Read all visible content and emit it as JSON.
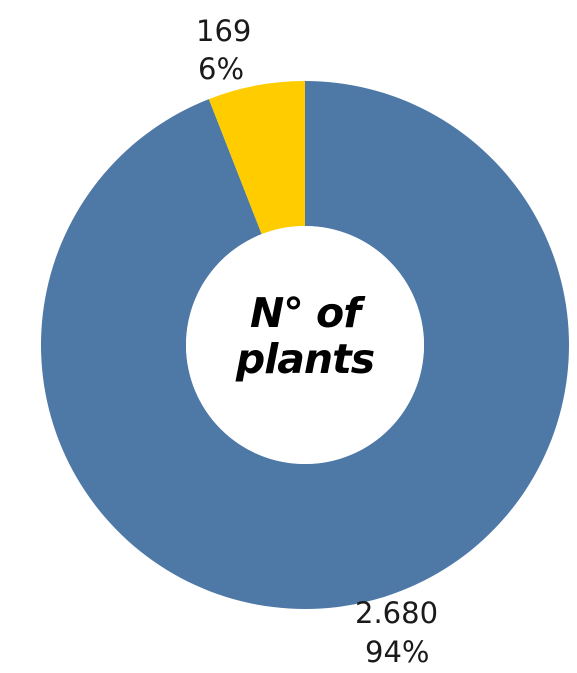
{
  "chart_data": {
    "type": "pie",
    "variant": "donut",
    "title": "",
    "center_label": "N° of plants",
    "slices": [
      {
        "value": 2680,
        "value_label": "2.680",
        "percent_label": "94%",
        "color": "#4e79a7"
      },
      {
        "value": 169,
        "value_label": "169",
        "percent_label": "6%",
        "color": "#ffcc00"
      }
    ],
    "legend": "none"
  }
}
